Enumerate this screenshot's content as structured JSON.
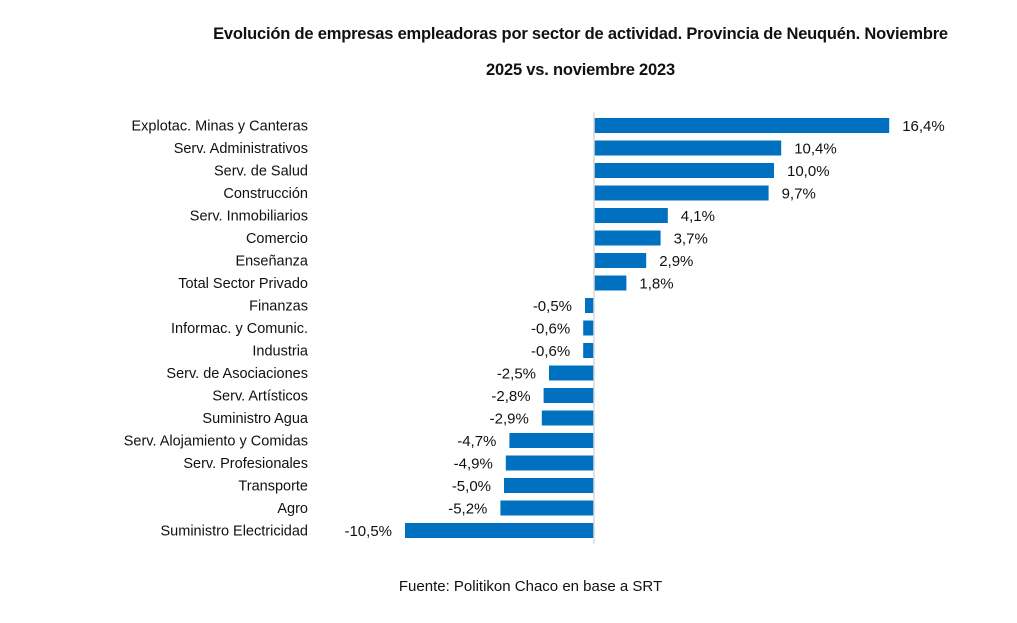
{
  "chart_data": {
    "type": "bar",
    "orientation": "horizontal",
    "title": "Evolución de empresas empleadoras por sector de actividad. Provincia de Neuquén. Noviembre 2025 vs. noviembre 2023",
    "title_lines": [
      "Evolución de empresas empleadoras por sector de actividad. Provincia de Neuquén. Noviembre",
      "2025 vs. noviembre 2023"
    ],
    "source": "Fuente: Politikon Chaco en base a SRT",
    "xlabel": "",
    "ylabel": "",
    "unit": "%",
    "grid": false,
    "legend": "none",
    "bar_color": "#0070C0",
    "axis_color": "#d9d9d9",
    "xlim": [
      -10.5,
      16.4
    ],
    "categories": [
      "Explotac. Minas y Canteras",
      "Serv. Administrativos",
      "Serv. de Salud",
      "Construcción",
      "Serv. Inmobiliarios",
      "Comercio",
      "Enseñanza",
      "Total Sector Privado",
      "Finanzas",
      "Informac. y Comunic.",
      "Industria",
      "Serv. de Asociaciones",
      "Serv. Artísticos",
      "Suministro Agua",
      "Serv. Alojamiento y Comidas",
      "Serv. Profesionales",
      "Transporte",
      "Agro",
      "Suministro Electricidad"
    ],
    "values": [
      16.4,
      10.4,
      10.0,
      9.7,
      4.1,
      3.7,
      2.9,
      1.8,
      -0.5,
      -0.6,
      -0.6,
      -2.5,
      -2.8,
      -2.9,
      -4.7,
      -4.9,
      -5.0,
      -5.2,
      -10.5
    ],
    "data_labels": [
      "16,4%",
      "10,4%",
      "10,0%",
      "9,7%",
      "4,1%",
      "3,7%",
      "2,9%",
      "1,8%",
      "-0,5%",
      "-0,6%",
      "-0,6%",
      "-2,5%",
      "-2,8%",
      "-2,9%",
      "-4,7%",
      "-4,9%",
      "-5,0%",
      "-5,2%",
      "-10,5%"
    ]
  }
}
